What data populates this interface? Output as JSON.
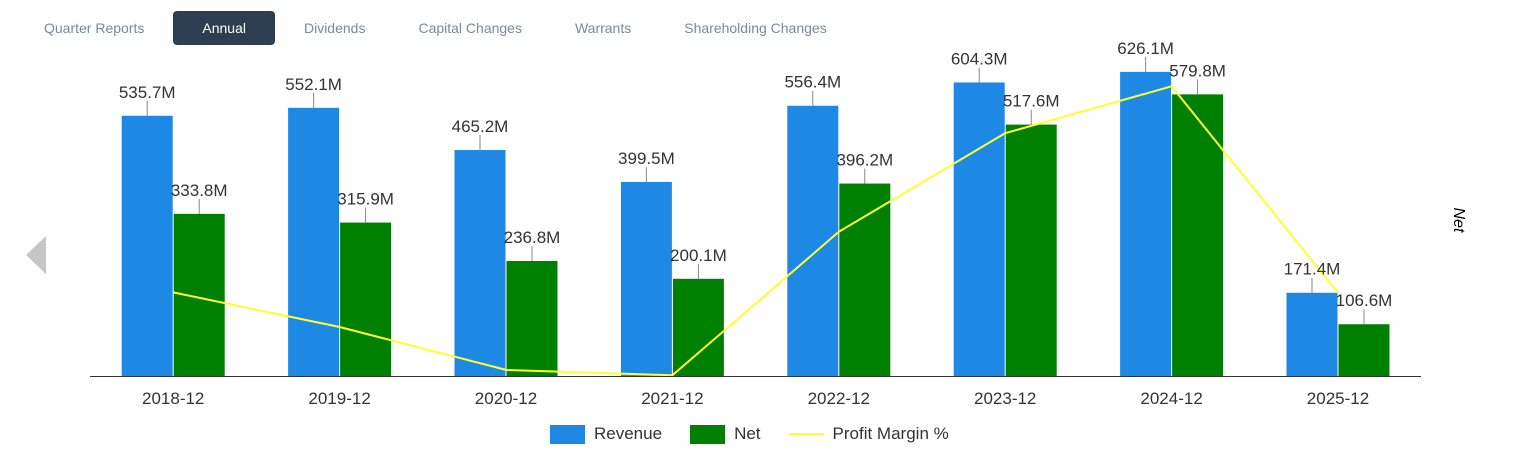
{
  "tabs": [
    {
      "label": "Quarter Reports",
      "active": false
    },
    {
      "label": "Annual",
      "active": true
    },
    {
      "label": "Dividends",
      "active": false
    },
    {
      "label": "Capital Changes",
      "active": false
    },
    {
      "label": "Warrants",
      "active": false
    },
    {
      "label": "Shareholding Changes",
      "active": false
    }
  ],
  "colors": {
    "revenue": "#1e88e5",
    "net": "#008000",
    "margin": "#ffff33"
  },
  "chart_data": {
    "type": "bar",
    "categories": [
      "2018-12",
      "2019-12",
      "2020-12",
      "2021-12",
      "2022-12",
      "2023-12",
      "2024-12",
      "2025-12"
    ],
    "series": [
      {
        "name": "Revenue",
        "values": [
          535.7,
          552.1,
          465.2,
          399.5,
          556.4,
          604.3,
          626.1,
          171.4
        ],
        "labels": [
          "535.7M",
          "552.1M",
          "465.2M",
          "399.5M",
          "556.4M",
          "604.3M",
          "626.1M",
          "171.4M"
        ]
      },
      {
        "name": "Net",
        "values": [
          333.8,
          315.9,
          236.8,
          200.1,
          396.2,
          517.6,
          579.8,
          106.6
        ],
        "labels": [
          "333.8M",
          "315.9M",
          "236.8M",
          "200.1M",
          "396.2M",
          "517.6M",
          "579.8M",
          "106.6M"
        ]
      },
      {
        "name": "Profit Margin %",
        "type": "line",
        "values": [
          62.3,
          57.2,
          50.9,
          50.1,
          71.2,
          85.7,
          92.6,
          62.2
        ]
      }
    ],
    "ylim_left": [
      0,
      700
    ],
    "ylim_right": [
      50,
      100
    ],
    "ylabel_right": "Net",
    "legend": [
      "Revenue",
      "Net",
      "Profit Margin %"
    ]
  }
}
